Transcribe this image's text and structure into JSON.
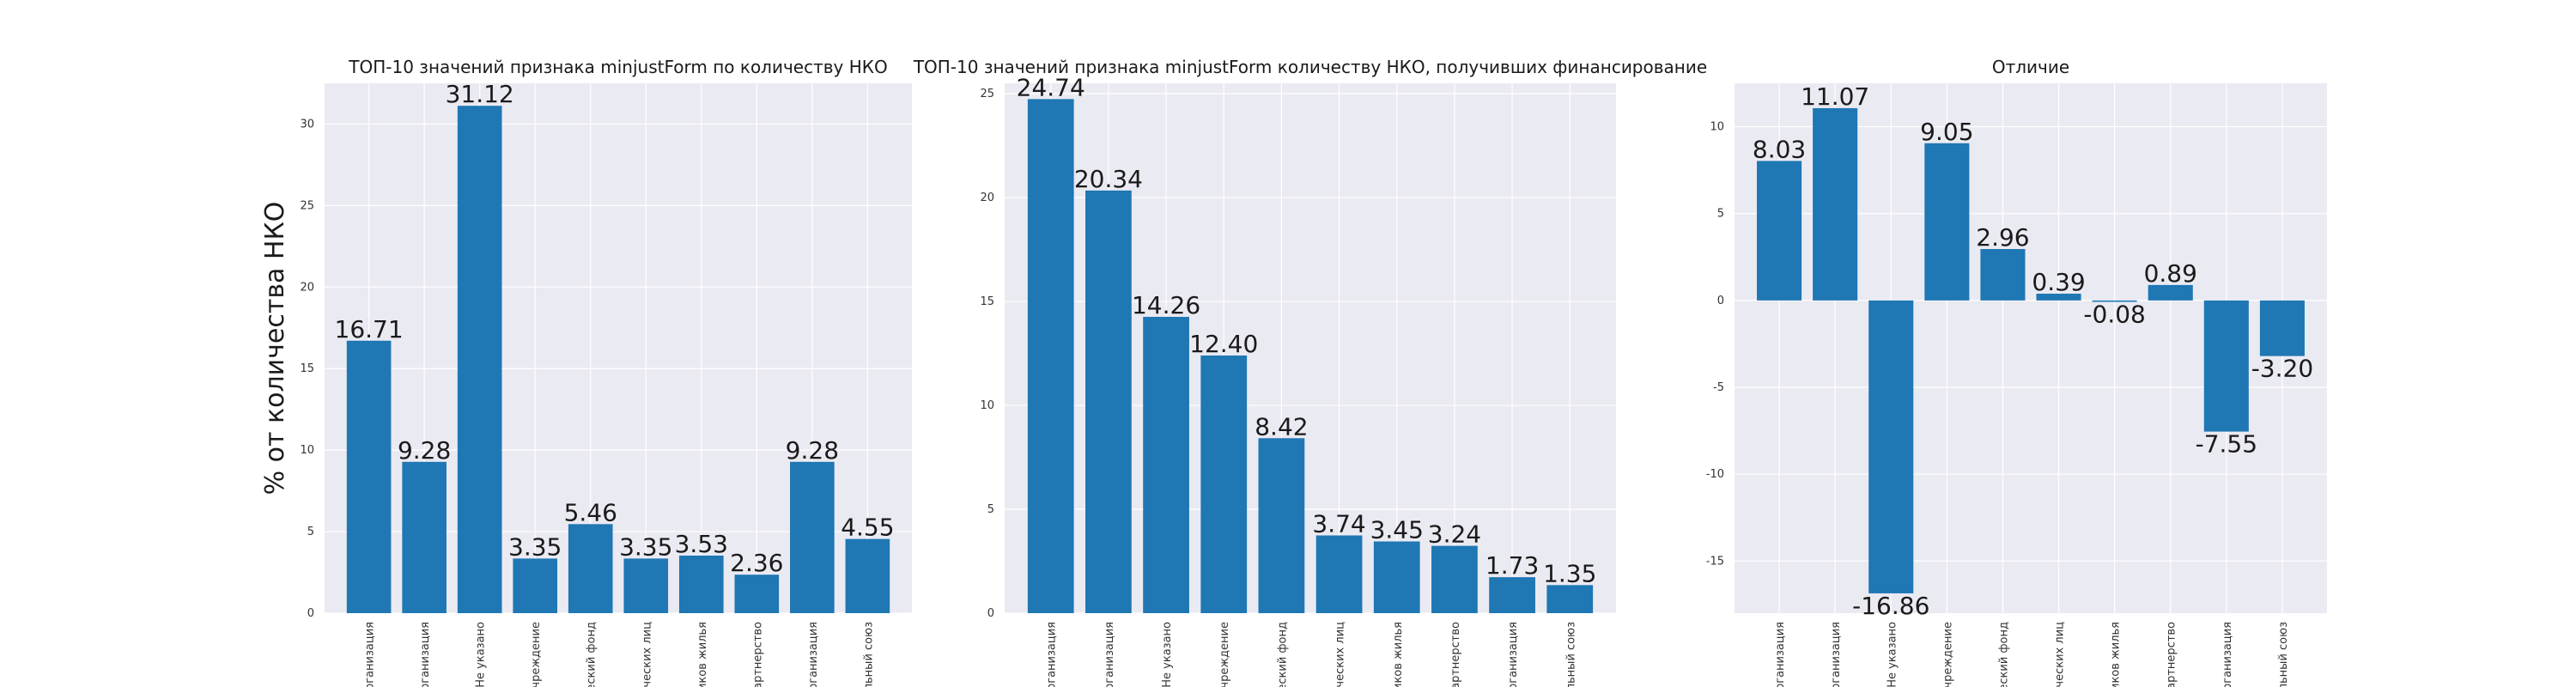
{
  "chart_data": [
    {
      "type": "bar",
      "title": "ТОП-10 значений признака minjustForm по количеству НКО",
      "ylabel": "% от количества НКО",
      "ylim": [
        0,
        32.5
      ],
      "yticks": [
        0,
        5,
        10,
        15,
        20,
        25,
        30
      ],
      "grid": true,
      "categories": [
        "…организация",
        "…организация",
        "Не указано",
        "…Учреждение",
        "…ический фонд",
        "…ических лиц",
        "…иков жилья",
        "…артнерство",
        "…организация",
        "…льный союз"
      ],
      "values": [
        16.71,
        9.28,
        31.12,
        3.35,
        5.46,
        3.35,
        3.53,
        2.36,
        9.28,
        4.55
      ],
      "value_labels": [
        "16.71",
        "9.28",
        "31.12",
        "3.35",
        "5.46",
        "3.35",
        "3.53",
        "2.36",
        "9.28",
        "4.55"
      ],
      "color": "#1f77b4"
    },
    {
      "type": "bar",
      "title": "ТОП-10 значений признака minjustForm количеству НКО, получивших финансирование",
      "ylabel": "",
      "ylim": [
        0,
        25.5
      ],
      "yticks": [
        0,
        5,
        10,
        15,
        20,
        25
      ],
      "grid": true,
      "categories": [
        "…организация",
        "…организация",
        "Не указано",
        "…Учреждение",
        "…ический фонд",
        "…ических лиц",
        "…иков жилья",
        "…артнерство",
        "…организация",
        "…льный союз"
      ],
      "values": [
        24.74,
        20.34,
        14.26,
        12.4,
        8.42,
        3.74,
        3.45,
        3.24,
        1.73,
        1.35
      ],
      "value_labels": [
        "24.74",
        "20.34",
        "14.26",
        "12.40",
        "8.42",
        "3.74",
        "3.45",
        "3.24",
        "1.73",
        "1.35"
      ],
      "color": "#1f77b4"
    },
    {
      "type": "bar",
      "title": "Отличие",
      "ylabel": "",
      "ylim": [
        -18,
        12.5
      ],
      "yticks": [
        -15,
        -10,
        -5,
        0,
        5,
        10
      ],
      "grid": true,
      "categories": [
        "…организация",
        "…организация",
        "Не указано",
        "…Учреждение",
        "…ический фонд",
        "…ических лиц",
        "…иков жилья",
        "…артнерство",
        "…организация",
        "…льный союз"
      ],
      "values": [
        8.03,
        11.07,
        -16.86,
        9.05,
        2.96,
        0.39,
        -0.08,
        0.89,
        -7.55,
        -3.2
      ],
      "value_labels": [
        "8.03",
        "11.07",
        "-16.86",
        "9.05",
        "2.96",
        "0.39",
        "-0.08",
        "0.89",
        "-7.55",
        "-3.20"
      ],
      "color": "#1f77b4"
    }
  ],
  "colors": {
    "plot_background": "#eaeaf2",
    "grid": "#ffffff",
    "bar": "#1f77b4"
  }
}
